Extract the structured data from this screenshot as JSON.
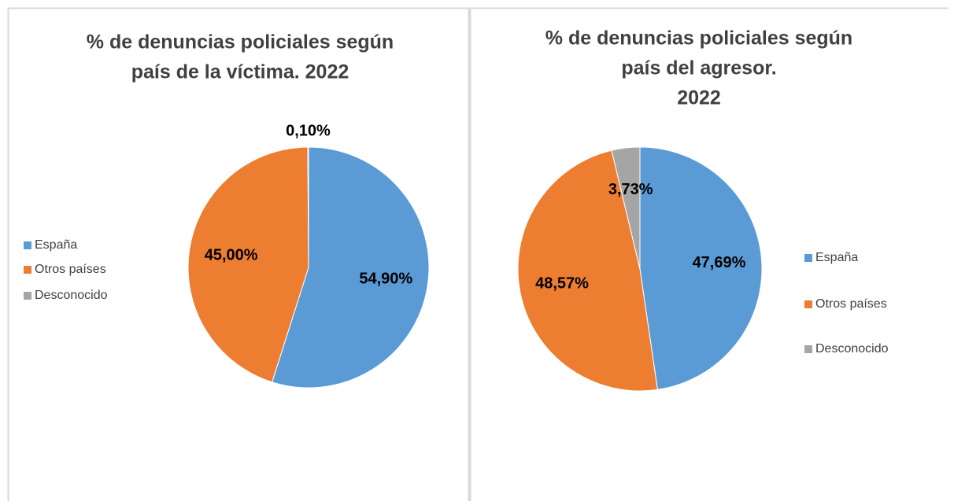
{
  "chart_data": [
    {
      "type": "pie",
      "title": [
        "% de denuncias policiales según",
        "país de la víctima. 2022"
      ],
      "categories": [
        "España",
        "Otros países",
        "Desconocido"
      ],
      "values": [
        54.9,
        45.0,
        0.1
      ],
      "value_labels": [
        "54,90%",
        "45,00%",
        "0,10%"
      ],
      "colors": [
        "#5b9bd5",
        "#ed7d31",
        "#a5a5a5"
      ],
      "legend": "left"
    },
    {
      "type": "pie",
      "title": [
        "% de denuncias policiales según",
        "país del agresor.",
        "2022"
      ],
      "categories": [
        "España",
        "Otros países",
        "Desconocido"
      ],
      "values": [
        47.69,
        48.57,
        3.73
      ],
      "value_labels": [
        "47,69%",
        "48,57%",
        "3,73%"
      ],
      "colors": [
        "#5b9bd5",
        "#ed7d31",
        "#a5a5a5"
      ],
      "legend": "right"
    }
  ]
}
